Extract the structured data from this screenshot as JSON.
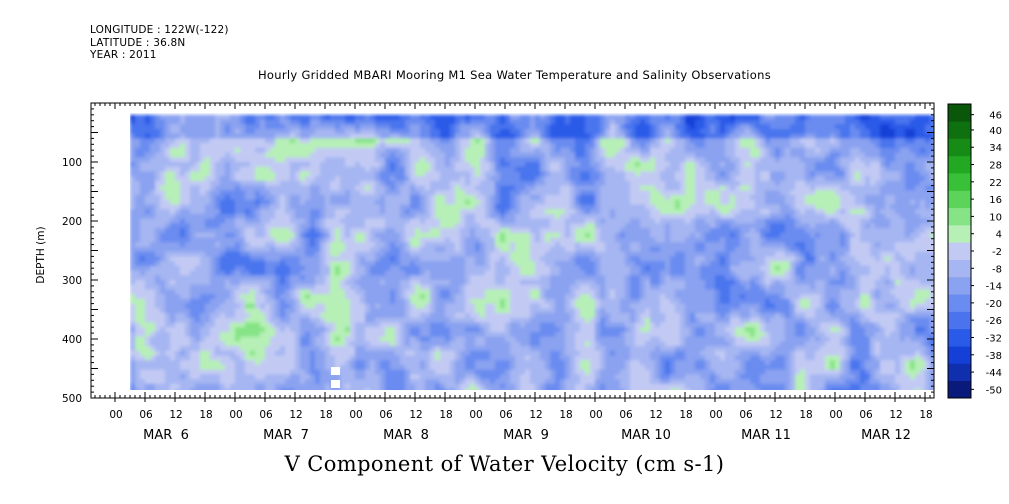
{
  "header": {
    "longitude": "LONGITUDE : 122W(-122)",
    "latitude": "LATITUDE : 36.8N",
    "year": "YEAR : 2011"
  },
  "title": "Hourly Gridded MBARI Mooring M1 Sea Water Temperature and Salinity Observations",
  "bottom_title": "V Component of Water Velocity (cm s-1)",
  "chart_data": {
    "type": "heatmap",
    "title": "Hourly Gridded MBARI Mooring M1 Sea Water Temperature and Salinity Observations",
    "xlabel": "",
    "ylabel": "DEPTH (m)",
    "variable": "V Component of Water Velocity (cm s-1)",
    "x_range_hours": [
      0,
      166
    ],
    "x_hour_ticks": [
      "00",
      "06",
      "12",
      "18",
      "00",
      "06",
      "12",
      "18",
      "00",
      "06",
      "12",
      "18",
      "00",
      "06",
      "12",
      "18",
      "00",
      "06",
      "12",
      "18",
      "00",
      "06",
      "12",
      "18",
      "00",
      "06",
      "12",
      "18"
    ],
    "x_day_labels": [
      "MAR  6",
      "MAR  7",
      "MAR  8",
      "MAR  9",
      "MAR 10",
      "MAR 11",
      "MAR 12"
    ],
    "ylim": [
      500,
      0
    ],
    "y_ticks": [
      100,
      200,
      300,
      400,
      500
    ],
    "y_tick_labels": [
      "100",
      "200",
      "300",
      "400",
      "500"
    ],
    "data_depth_range": [
      20,
      485
    ],
    "data_time_start_hour": 3,
    "colorbar": {
      "levels": [
        -50,
        -44,
        -38,
        -32,
        -26,
        -20,
        -14,
        -8,
        -2,
        4,
        10,
        16,
        22,
        28,
        34,
        40,
        46
      ],
      "labels": [
        "46",
        "40",
        "34",
        "28",
        "22",
        "16",
        "10",
        "4",
        "-2",
        "-8",
        "-14",
        "-20",
        "-26",
        "-32",
        "-38",
        "-44",
        "-50"
      ],
      "colors": [
        "#0a1a7a",
        "#0f2fae",
        "#1540d8",
        "#2a5ae8",
        "#4a74ee",
        "#6a8cf0",
        "#8aa2f0",
        "#a6b6f2",
        "#c2caf4",
        "#b6f0b6",
        "#86e486",
        "#5cd45c",
        "#38c038",
        "#22a822",
        "#168c16",
        "#0e700e",
        "#0a560a"
      ]
    },
    "grid": false
  }
}
